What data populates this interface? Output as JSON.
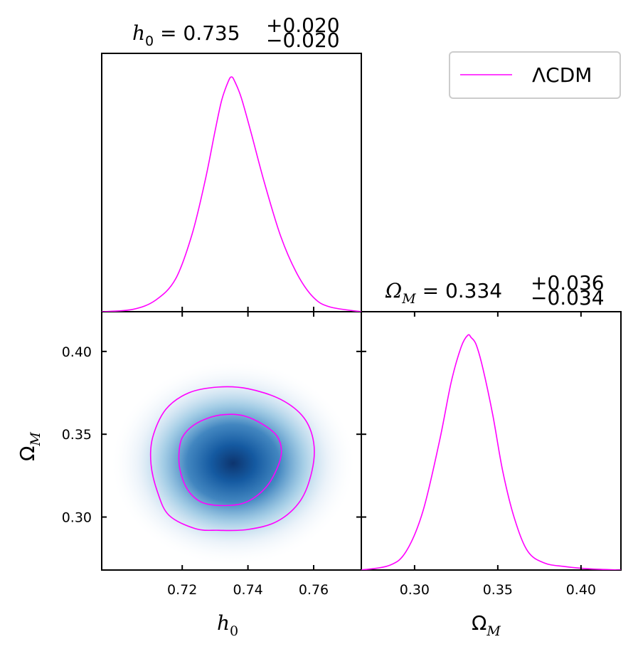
{
  "colors": {
    "model": "#ff00ff",
    "density_light": "#f7fbff",
    "density_dark": "#08519c"
  },
  "legend": {
    "label": "ΛCDM"
  },
  "chart_data": {
    "type": "corner",
    "parameters": [
      {
        "name": "h0",
        "symbol": "h",
        "subscript": "0",
        "median": 0.735,
        "plus": 0.02,
        "minus": 0.02,
        "title_value": "0.735",
        "title_plus": "+0.020",
        "title_minus": "−0.020",
        "xlim": [
          0.6955,
          0.7745
        ],
        "ticks": [
          0.72,
          0.74,
          0.76
        ],
        "tick_labels": [
          "0.72",
          "0.74",
          "0.76"
        ],
        "axis_label": "h",
        "axis_label_sub": "0"
      },
      {
        "name": "Omega_M",
        "symbol": "Ω",
        "subscript": "M",
        "median": 0.334,
        "plus": 0.036,
        "minus": 0.034,
        "title_value": "0.334",
        "title_plus": "+0.036",
        "title_minus": "−0.034",
        "xlim": [
          0.268,
          0.424
        ],
        "ticks": [
          0.3,
          0.35,
          0.4
        ],
        "tick_labels": [
          "0.30",
          "0.35",
          "0.40"
        ],
        "axis_label": "Ω",
        "axis_label_sub": "M"
      }
    ],
    "marginal_h0": {
      "x": [
        0.6955,
        0.705,
        0.712,
        0.718,
        0.723,
        0.727,
        0.73,
        0.732,
        0.734,
        0.735,
        0.736,
        0.738,
        0.741,
        0.745,
        0.75,
        0.755,
        0.76,
        0.765,
        0.7745
      ],
      "y": [
        0.0,
        0.01,
        0.05,
        0.14,
        0.33,
        0.56,
        0.77,
        0.9,
        0.98,
        1.0,
        0.98,
        0.91,
        0.76,
        0.55,
        0.32,
        0.16,
        0.06,
        0.02,
        0.0
      ]
    },
    "marginal_omega": {
      "x": [
        0.268,
        0.285,
        0.295,
        0.305,
        0.315,
        0.322,
        0.328,
        0.332,
        0.334,
        0.337,
        0.341,
        0.347,
        0.353,
        0.36,
        0.368,
        0.378,
        0.39,
        0.405,
        0.424
      ],
      "y": [
        0.0,
        0.02,
        0.08,
        0.25,
        0.55,
        0.8,
        0.95,
        1.0,
        0.99,
        0.96,
        0.86,
        0.66,
        0.42,
        0.22,
        0.08,
        0.03,
        0.015,
        0.005,
        0.0
      ]
    },
    "joint": {
      "peak": [
        0.7355,
        0.3325
      ],
      "contour_68": {
        "h0": [
          0.734,
          0.739,
          0.7445,
          0.7488,
          0.7502,
          0.749,
          0.7455,
          0.74,
          0.734,
          0.7265,
          0.722,
          0.7195,
          0.719,
          0.72,
          0.7235,
          0.729,
          0.734
        ],
        "omega": [
          0.362,
          0.361,
          0.356,
          0.349,
          0.34,
          0.33,
          0.318,
          0.3095,
          0.307,
          0.3085,
          0.3155,
          0.327,
          0.338,
          0.348,
          0.3555,
          0.3605,
          0.362
        ]
      },
      "contour_95": {
        "h0": [
          0.731,
          0.74,
          0.75,
          0.757,
          0.76,
          0.7595,
          0.756,
          0.749,
          0.74,
          0.731,
          0.724,
          0.716,
          0.7125,
          0.7105,
          0.711,
          0.715,
          0.722,
          0.731
        ],
        "omega": [
          0.3785,
          0.3775,
          0.371,
          0.36,
          0.345,
          0.328,
          0.31,
          0.2975,
          0.2925,
          0.292,
          0.293,
          0.301,
          0.315,
          0.332,
          0.348,
          0.365,
          0.375,
          0.3785
        ]
      }
    }
  }
}
